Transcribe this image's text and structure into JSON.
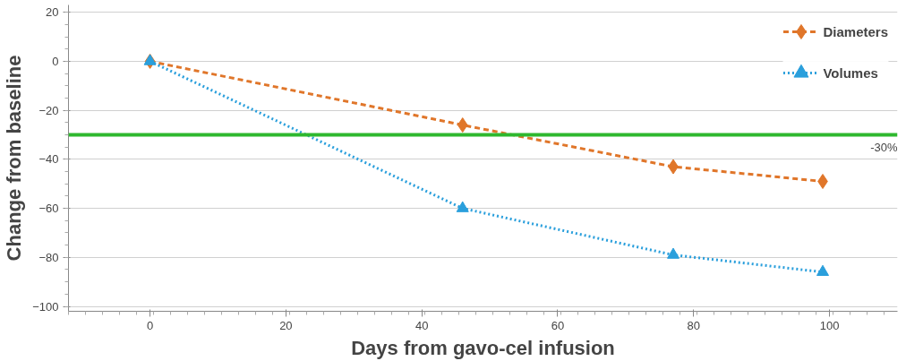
{
  "chart_data": {
    "type": "line",
    "xlabel": "Days from gavo-cel infusion",
    "ylabel": "Change from baseline",
    "xlim": [
      -12,
      110
    ],
    "ylim": [
      -102,
      23
    ],
    "xticks": [
      0,
      20,
      40,
      60,
      80,
      100
    ],
    "yticks": [
      -100,
      -80,
      -60,
      -40,
      -20,
      0,
      20
    ],
    "grid": "y",
    "legend": "top right",
    "series": [
      {
        "name": "Diameters",
        "color": "#e0762a",
        "x": [
          0,
          46,
          77,
          99
        ],
        "values": [
          0,
          -26,
          -43,
          -49
        ],
        "marker": "diamond",
        "line_style": "dashed"
      },
      {
        "name": "Volumes",
        "color": "#2a9fdc",
        "x": [
          0,
          46,
          77,
          99
        ],
        "values": [
          0,
          -60,
          -79,
          -86
        ],
        "marker": "triangle",
        "line_style": "dotted"
      }
    ],
    "ref_lines": [
      {
        "axis": "y",
        "value": -30,
        "label": "-30%",
        "color": "#2eb82e"
      }
    ]
  }
}
